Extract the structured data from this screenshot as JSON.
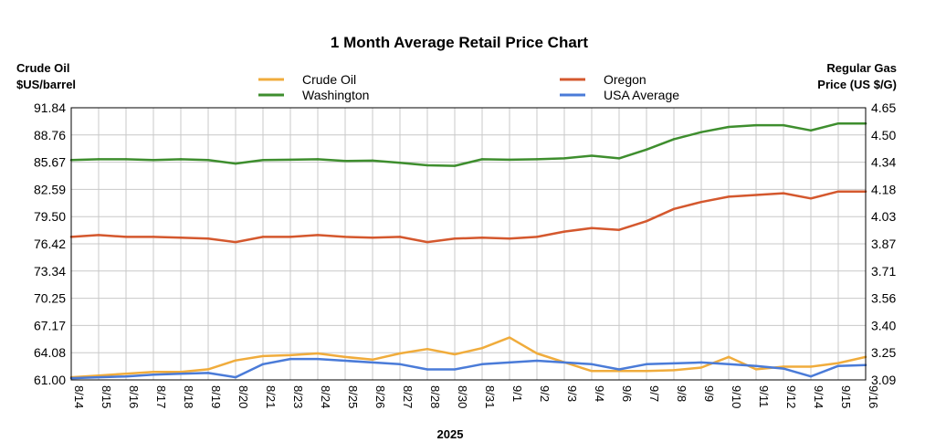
{
  "chart_data": {
    "type": "line",
    "title": "1 Month Average Retail Price Chart",
    "ylabel_left": [
      "Crude Oil",
      "$US/barrel"
    ],
    "ylabel_right": [
      "Regular Gas",
      "Price (US $/G)"
    ],
    "xlabel": "2025",
    "categories": [
      "8/14",
      "8/15",
      "8/16",
      "8/17",
      "8/18",
      "8/19",
      "8/20",
      "8/21",
      "8/23",
      "8/24",
      "8/25",
      "8/26",
      "8/27",
      "8/28",
      "8/30",
      "8/31",
      "9/1",
      "9/2",
      "9/3",
      "9/4",
      "9/6",
      "9/7",
      "9/8",
      "9/9",
      "9/10",
      "9/11",
      "9/12",
      "9/14",
      "9/15",
      "9/16"
    ],
    "ylim_left": [
      61.0,
      91.84
    ],
    "ylim_right": [
      3.09,
      4.65
    ],
    "yticks_left": [
      "61.00",
      "64.08",
      "67.17",
      "70.25",
      "73.34",
      "76.42",
      "79.50",
      "82.59",
      "85.67",
      "88.76",
      "91.84"
    ],
    "yticks_right": [
      "3.09",
      "3.25",
      "3.40",
      "3.56",
      "3.71",
      "3.87",
      "4.03",
      "4.18",
      "4.34",
      "4.50",
      "4.65"
    ],
    "legend": {
      "position": "top",
      "entries": [
        {
          "name": "Crude Oil",
          "color": "#f0ac3c"
        },
        {
          "name": "Oregon",
          "color": "#d4582e"
        },
        {
          "name": "Washington",
          "color": "#3e8e2e"
        },
        {
          "name": "USA Average",
          "color": "#4a7bd8"
        }
      ]
    },
    "series": [
      {
        "name": "Crude Oil",
        "axis": "left",
        "color": "#f0ac3c",
        "values": [
          61.3,
          61.5,
          61.7,
          61.9,
          61.9,
          62.2,
          63.2,
          63.7,
          63.8,
          64.0,
          63.6,
          63.3,
          64.0,
          64.5,
          63.9,
          64.6,
          65.8,
          64.0,
          63.0,
          62.0,
          62.0,
          62.0,
          62.1,
          62.4,
          63.6,
          62.2,
          62.5,
          62.5,
          62.9,
          63.6
        ]
      },
      {
        "name": "Oregon",
        "axis": "right",
        "color": "#d4582e",
        "values": [
          3.91,
          3.92,
          3.91,
          3.91,
          3.905,
          3.9,
          3.88,
          3.91,
          3.91,
          3.92,
          3.91,
          3.905,
          3.91,
          3.88,
          3.9,
          3.905,
          3.9,
          3.91,
          3.94,
          3.96,
          3.95,
          4.0,
          4.07,
          4.11,
          4.14,
          4.15,
          4.16,
          4.13,
          4.17,
          4.17
        ]
      },
      {
        "name": "Washington",
        "axis": "right",
        "color": "#3e8e2e",
        "values": [
          4.35,
          4.355,
          4.355,
          4.35,
          4.355,
          4.35,
          4.33,
          4.35,
          4.352,
          4.355,
          4.345,
          4.347,
          4.335,
          4.32,
          4.317,
          4.355,
          4.352,
          4.355,
          4.36,
          4.375,
          4.36,
          4.41,
          4.47,
          4.51,
          4.54,
          4.55,
          4.55,
          4.52,
          4.56,
          4.56
        ]
      },
      {
        "name": "USA Average",
        "axis": "right",
        "color": "#4a7bd8",
        "values": [
          3.1,
          3.105,
          3.11,
          3.12,
          3.125,
          3.13,
          3.105,
          3.18,
          3.21,
          3.21,
          3.2,
          3.19,
          3.18,
          3.15,
          3.15,
          3.18,
          3.19,
          3.2,
          3.19,
          3.18,
          3.15,
          3.18,
          3.185,
          3.19,
          3.18,
          3.17,
          3.155,
          3.11,
          3.17,
          3.175
        ]
      }
    ]
  }
}
